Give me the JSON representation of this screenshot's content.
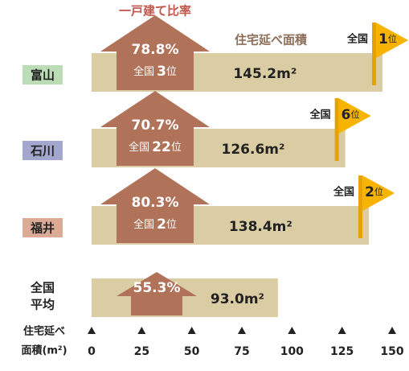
{
  "chart_data": {
    "type": "bar",
    "categories": [
      [
        "富山"
      ],
      [
        "石川"
      ],
      [
        "福井"
      ],
      [
        "全国",
        "平均"
      ]
    ],
    "category_colors": [
      "#bcdcb6",
      "#a3a6cd",
      "#dcab95",
      null
    ],
    "series": [
      {
        "name": "一戸建て比率",
        "color": "#b0735a",
        "values": [
          78.8,
          70.7,
          80.3,
          55.3
        ],
        "value_labels": [
          "78.8%",
          "70.7%",
          "80.3%",
          "55.3%"
        ],
        "ranks": [
          3,
          22,
          2,
          null
        ]
      },
      {
        "name": "住宅延べ面積",
        "color": "#dbcda3",
        "values": [
          145.2,
          126.6,
          138.4,
          93.0
        ],
        "value_labels": [
          "145.2m²",
          "126.6m²",
          "138.4m²",
          "93.0m²"
        ],
        "ranks": [
          1,
          6,
          2,
          null
        ]
      }
    ],
    "rank_prefix": "全国",
    "rank_suffix": "位",
    "flag_color": "#f6b400",
    "xlabel": [
      "住宅延べ",
      "面積(m²)"
    ],
    "xlim": [
      0,
      150
    ],
    "xticks": [
      0,
      25,
      50,
      75,
      100,
      125,
      150
    ]
  }
}
